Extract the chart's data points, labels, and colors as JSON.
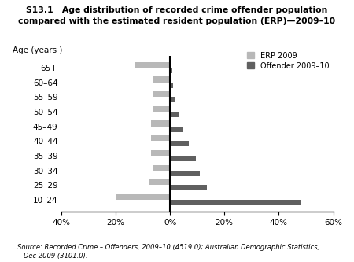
{
  "title_line1": "S13.1   Age distribution of recorded crime offender population",
  "title_line2": "compared with the estimated resident population (ERP)—2009–10",
  "categories": [
    "65+",
    "60–64",
    "55–59",
    "50–54",
    "45–49",
    "40–44",
    "35–39",
    "30–34",
    "25–29",
    "10–24"
  ],
  "erp_values": [
    -13.0,
    -6.0,
    -6.2,
    -6.5,
    -7.0,
    -7.0,
    -7.0,
    -6.5,
    -7.5,
    -20.0
  ],
  "offender_values": [
    0.8,
    1.0,
    1.8,
    3.2,
    5.0,
    7.0,
    9.5,
    11.0,
    13.5,
    48.0
  ],
  "erp_color": "#b8b8b8",
  "offender_color": "#606060",
  "xlim": [
    -40,
    60
  ],
  "xticks": [
    -40,
    -20,
    0,
    20,
    40,
    60
  ],
  "xticklabels": [
    "40%",
    "20%",
    "0%",
    "20%",
    "40%",
    "60%"
  ],
  "age_label": "Age (years )",
  "source_text": "Source: Recorded Crime – Offenders, 2009–10 (4519.0); Australian Demographic Statistics,\n   Dec 2009 (3101.0).",
  "legend_erp_label": "ERP 2009",
  "legend_offender_label": "Offender 2009–10",
  "bar_height": 0.38
}
